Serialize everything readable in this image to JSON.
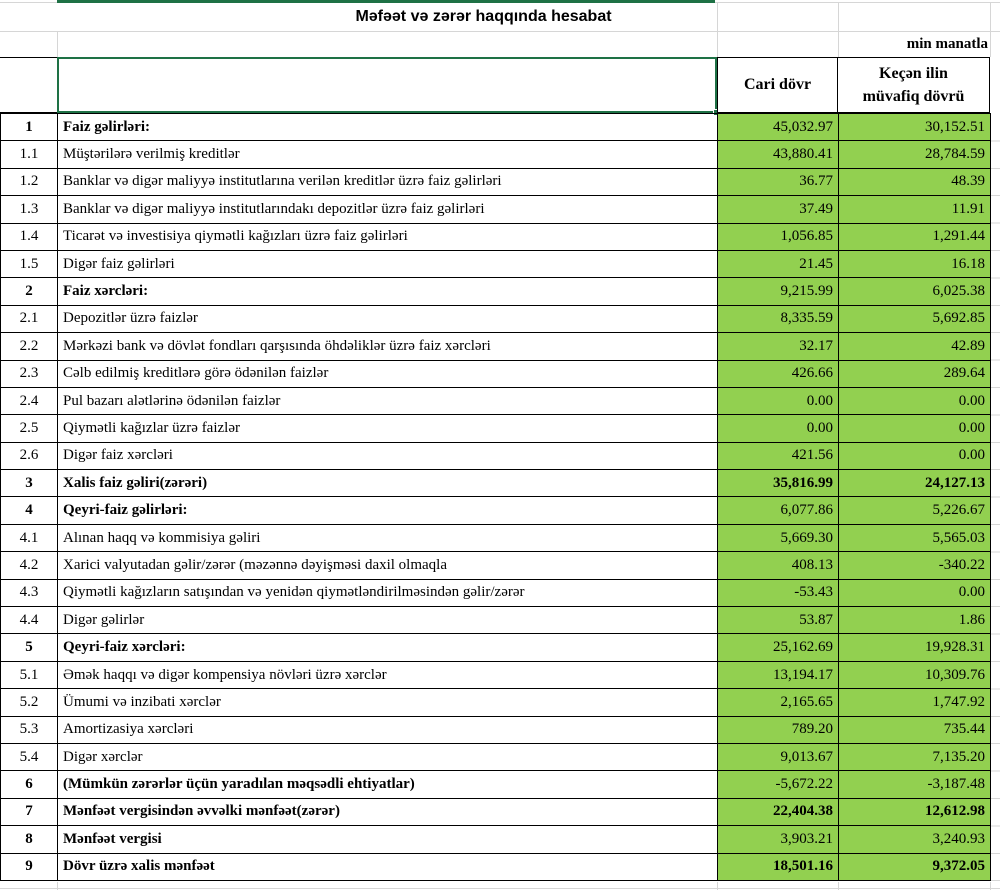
{
  "sheet": {
    "title": "Məfəət və zərər haqqında hesabat",
    "unit_note": "min manatla",
    "columns": {
      "current": "Cari dövr",
      "previous_line1": "Keçən ilin",
      "previous_line2": "müvafiq dövrü"
    },
    "colors": {
      "cell_fill_green": "#92D050",
      "selection_green": "#1E7145",
      "gridline_gray": "#D6D6D6",
      "border_black": "#000000"
    },
    "rows": [
      {
        "no": "1",
        "label": "Faiz gəlirləri:",
        "current": "45,032.97",
        "previous": "30,152.51",
        "bold_label": true,
        "bold_values": false
      },
      {
        "no": "1.1",
        "label": "Müştərilərə verilmiş kreditlər",
        "current": "43,880.41",
        "previous": "28,784.59",
        "bold_label": false,
        "bold_values": false
      },
      {
        "no": "1.2",
        "label": "Banklar və digər maliyyə institutlarına verilən kreditlər üzrə faiz gəlirləri",
        "current": "36.77",
        "previous": "48.39",
        "bold_label": false,
        "bold_values": false
      },
      {
        "no": "1.3",
        "label": "Banklar və digər maliyyə institutlarındakı depozitlər üzrə faiz gəlirləri",
        "current": "37.49",
        "previous": "11.91",
        "bold_label": false,
        "bold_values": false
      },
      {
        "no": "1.4",
        "label": "Ticarət və investisiya qiymətli kağızları üzrə faiz gəlirləri",
        "current": "1,056.85",
        "previous": "1,291.44",
        "bold_label": false,
        "bold_values": false
      },
      {
        "no": "1.5",
        "label": "Digər faiz gəlirləri",
        "current": "21.45",
        "previous": "16.18",
        "bold_label": false,
        "bold_values": false
      },
      {
        "no": "2",
        "label": "Faiz xərcləri:",
        "current": "9,215.99",
        "previous": "6,025.38",
        "bold_label": true,
        "bold_values": false
      },
      {
        "no": "2.1",
        "label": "Depozitlər üzrə faizlər",
        "current": "8,335.59",
        "previous": "5,692.85",
        "bold_label": false,
        "bold_values": false
      },
      {
        "no": "2.2",
        "label": "Mərkəzi bank və dövlət fondları qarşısında öhdəliklər üzrə faiz xərcləri",
        "current": "32.17",
        "previous": "42.89",
        "bold_label": false,
        "bold_values": false
      },
      {
        "no": "2.3",
        "label": "Cəlb edilmiş kreditlərə görə ödənilən faizlər",
        "current": "426.66",
        "previous": "289.64",
        "bold_label": false,
        "bold_values": false
      },
      {
        "no": "2.4",
        "label": "Pul bazarı alətlərinə ödənilən faizlər",
        "current": "0.00",
        "previous": "0.00",
        "bold_label": false,
        "bold_values": false
      },
      {
        "no": "2.5",
        "label": "Qiymətli kağızlar üzrə faizlər",
        "current": "0.00",
        "previous": "0.00",
        "bold_label": false,
        "bold_values": false
      },
      {
        "no": "2.6",
        "label": "Digər faiz xərcləri",
        "current": "421.56",
        "previous": "0.00",
        "bold_label": false,
        "bold_values": false
      },
      {
        "no": "3",
        "label": "Xalis faiz gəliri(zərəri)",
        "current": "35,816.99",
        "previous": "24,127.13",
        "bold_label": true,
        "bold_values": true
      },
      {
        "no": "4",
        "label": "Qeyri-faiz gəlirləri:",
        "current": "6,077.86",
        "previous": "5,226.67",
        "bold_label": true,
        "bold_values": false
      },
      {
        "no": "4.1",
        "label": "Alınan haqq və kommisiya gəliri",
        "current": "5,669.30",
        "previous": "5,565.03",
        "bold_label": false,
        "bold_values": false
      },
      {
        "no": "4.2",
        "label": "Xarici valyutadan gəlir/zərər (məzənnə dəyişməsi daxil olmaqla",
        "current": "408.13",
        "previous": "-340.22",
        "bold_label": false,
        "bold_values": false
      },
      {
        "no": "4.3",
        "label": "Qiymətli kağızların satışından və yenidən qiymətləndirilməsindən gəlir/zərər",
        "current": "-53.43",
        "previous": "0.00",
        "bold_label": false,
        "bold_values": false
      },
      {
        "no": "4.4",
        "label": "Digər gəlirlər",
        "current": "53.87",
        "previous": "1.86",
        "bold_label": false,
        "bold_values": false
      },
      {
        "no": "5",
        "label": "Qeyri-faiz xərcləri:",
        "current": "25,162.69",
        "previous": "19,928.31",
        "bold_label": true,
        "bold_values": false
      },
      {
        "no": "5.1",
        "label": "Əmək haqqı və digər kompensiya növləri üzrə xərclər",
        "current": "13,194.17",
        "previous": "10,309.76",
        "bold_label": false,
        "bold_values": false
      },
      {
        "no": "5.2",
        "label": "Ümumi və inzibati xərclər",
        "current": "2,165.65",
        "previous": "1,747.92",
        "bold_label": false,
        "bold_values": false
      },
      {
        "no": "5.3",
        "label": "Amortizasiya xərcləri",
        "current": "789.20",
        "previous": "735.44",
        "bold_label": false,
        "bold_values": false
      },
      {
        "no": "5.4",
        "label": "Digər xərclər",
        "current": "9,013.67",
        "previous": "7,135.20",
        "bold_label": false,
        "bold_values": false
      },
      {
        "no": "6",
        "label": "(Mümkün zərərlər üçün yaradılan məqsədli ehtiyatlar)",
        "current": "-5,672.22",
        "previous": "-3,187.48",
        "bold_label": true,
        "bold_values": false
      },
      {
        "no": "7",
        "label": "Mənfəət vergisindən əvvəlki mənfəət(zərər)",
        "current": "22,404.38",
        "previous": "12,612.98",
        "bold_label": true,
        "bold_values": true
      },
      {
        "no": "8",
        "label": "Mənfəət vergisi",
        "current": "3,903.21",
        "previous": "3,240.93",
        "bold_label": true,
        "bold_values": false
      },
      {
        "no": "9",
        "label": "Dövr üzrə xalis mənfəət",
        "current": "18,501.16",
        "previous": "9,372.05",
        "bold_label": true,
        "bold_values": true
      }
    ]
  }
}
